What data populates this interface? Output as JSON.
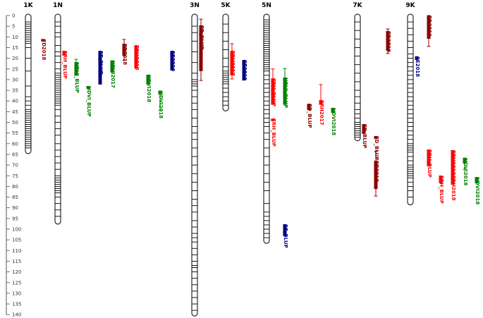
{
  "axis": {
    "ticks": [
      0,
      5,
      10,
      15,
      20,
      25,
      30,
      35,
      40,
      45,
      50,
      55,
      60,
      65,
      70,
      75,
      80,
      85,
      90,
      95,
      100,
      105,
      110,
      115,
      120,
      125,
      130,
      135,
      140
    ]
  },
  "chromosomes": [
    {
      "name": "1K",
      "length": 64,
      "markers": [
        3,
        4,
        5,
        6,
        7,
        8,
        9,
        10,
        11,
        12,
        13,
        15,
        20,
        26,
        33,
        38,
        40,
        42,
        44,
        45,
        46,
        47,
        48,
        49,
        50,
        51,
        52,
        53,
        54,
        55,
        56,
        57,
        58,
        59,
        60,
        61,
        62
      ],
      "qtls": [
        {
          "label": "FD2018",
          "color": "#8b0000",
          "start": 11,
          "end": 12.2
        }
      ]
    },
    {
      "name": "1N",
      "length": 97,
      "markers": [
        3,
        5,
        8,
        10,
        14,
        17,
        19,
        22,
        25,
        27,
        28,
        29,
        30,
        31,
        32,
        33,
        34,
        35,
        36,
        37,
        38,
        39,
        40,
        41,
        42,
        44,
        47,
        50,
        53,
        56,
        60,
        63,
        66,
        69,
        72,
        75,
        76,
        77,
        78,
        79,
        80,
        81,
        82,
        83,
        85,
        88,
        91,
        94
      ],
      "qtls": [
        {
          "label": "FRH_BLUP",
          "color": "#ff0000",
          "start": 16.5,
          "end": 18.8
        },
        {
          "label": "NDVI_BLUP",
          "color": "#008000",
          "start": 21.8,
          "end": 28,
          "whisker": [
            20.5,
            28
          ]
        },
        {
          "label": "NDVI_BLUP",
          "color": "#008000",
          "start": 33,
          "end": 34.3
        },
        {
          "label": "SE_BLUP",
          "color": "#000080",
          "start": 16.5,
          "end": 32.3
        },
        {
          "label": "NDVI2017",
          "color": "#008000",
          "start": 21,
          "end": 26.7
        },
        {
          "label": "FD2018",
          "color": "#8b0000",
          "start": 13.2,
          "end": 19,
          "whisker": [
            11.2,
            21
          ]
        },
        {
          "label": "FRH2018",
          "color": "#ff0000",
          "start": 13.9,
          "end": 24.8
        },
        {
          "label": "NDVI2018",
          "color": "#008000",
          "start": 27.7,
          "end": 32.3
        },
        {
          "label": "NDVI2018",
          "color": "#008000",
          "start": 35.3,
          "end": 37,
          "whisker": [
            35.3,
            44.5
          ]
        },
        {
          "label": "SE2019",
          "color": "#000080",
          "start": 16.5,
          "end": 25.7
        }
      ]
    },
    {
      "name": "3N",
      "length": 140,
      "markers": [
        5,
        8,
        12,
        17,
        22,
        27,
        30,
        31,
        32,
        33,
        35,
        38,
        41,
        44,
        48,
        52,
        55,
        58,
        62,
        66,
        70,
        74,
        78,
        82,
        86,
        89,
        92,
        96,
        99,
        102,
        104,
        106,
        109,
        112,
        115,
        117,
        118,
        120,
        123,
        126,
        129,
        132,
        135,
        138
      ],
      "qtls": [
        {
          "label": "FD_BLUP",
          "color": "#8b0000",
          "start": 4.6,
          "end": 26,
          "whisker": [
            1.7,
            30.4
          ]
        }
      ]
    },
    {
      "name": "5K",
      "length": 44,
      "markers": [
        4,
        8,
        12,
        16,
        20,
        24,
        26,
        27,
        28,
        29,
        30,
        31,
        32,
        34,
        36,
        38,
        40,
        42
      ],
      "qtls": [
        {
          "label": "FRH2017",
          "color": "#ff0000",
          "start": 16.5,
          "end": 28,
          "whisker": [
            13.2,
            29.7
          ]
        },
        {
          "label": "SE2019",
          "color": "#000080",
          "start": 20.8,
          "end": 30.4
        }
      ]
    },
    {
      "name": "5N",
      "length": 106,
      "markers": [
        2,
        3,
        4,
        5,
        6,
        7,
        8,
        9,
        10,
        11,
        12,
        13,
        14,
        15,
        16,
        17,
        18,
        19,
        20,
        21,
        22,
        23,
        24,
        25,
        26,
        28,
        30,
        32,
        34,
        36,
        38,
        40,
        42,
        44,
        46,
        48,
        50,
        52,
        55,
        58,
        62,
        66,
        70,
        74,
        78,
        82,
        88,
        92,
        94,
        96,
        98,
        100,
        102,
        104
      ],
      "qtls": [
        {
          "label": "FRH_BLUP",
          "color": "#ff0000",
          "start": 29.4,
          "end": 41.6,
          "whisker": [
            25,
            41.6
          ]
        },
        {
          "label": "NDVI_BLUP",
          "color": "#008000",
          "start": 29,
          "end": 41.6,
          "whisker": [
            24.8,
            41.6
          ]
        },
        {
          "label": "FD_BLUP",
          "color": "#8b0000",
          "start": 41.3,
          "end": 44.2
        },
        {
          "label": "FRH2017",
          "color": "#ff0000",
          "start": 39.6,
          "end": 41.6,
          "whisker": [
            32.3,
            41.6
          ]
        },
        {
          "label": "NDVI2018",
          "color": "#008000",
          "start": 43.2,
          "end": 45.5
        },
        {
          "label": "FRH_BLUP",
          "color": "#ff0000",
          "start": 48.2,
          "end": 49.5
        },
        {
          "label": "SE_BLUP",
          "color": "#000080",
          "start": 97.7,
          "end": 103.3
        }
      ]
    },
    {
      "name": "7K",
      "length": 58,
      "markers": [
        3,
        7,
        11,
        15,
        19,
        23,
        27,
        31,
        35,
        38,
        41,
        44,
        46,
        48,
        50,
        51,
        52,
        53,
        54,
        55,
        56,
        57
      ],
      "qtls": [
        {
          "label": "FD_BLUP",
          "color": "#8b0000",
          "start": 50.8,
          "end": 55.4
        },
        {
          "label": "FD_BLUP",
          "color": "#8b0000",
          "start": 56.4,
          "end": 57.8
        },
        {
          "label": "FD2019",
          "color": "#8b0000",
          "start": 7.3,
          "end": 16.5,
          "whisker": [
            6.3,
            17.8
          ]
        },
        {
          "label": "FD2018",
          "color": "#8b0000",
          "start": 68,
          "end": 81.2,
          "whisker": [
            63.7,
            84.5
          ]
        }
      ]
    },
    {
      "name": "9K",
      "length": 88,
      "markers": [
        3,
        6,
        9,
        12,
        15,
        18,
        20,
        22,
        24,
        26,
        28,
        30,
        32,
        34,
        36,
        38,
        40,
        42,
        44,
        46,
        48,
        50,
        52,
        54,
        56,
        58,
        60,
        61,
        62,
        63,
        64,
        66,
        68,
        70,
        71,
        72,
        73,
        74,
        75,
        76,
        78,
        80,
        82,
        85
      ],
      "qtls": [
        {
          "label": "FD2019",
          "color": "#8b0000",
          "start": 0,
          "end": 10.9,
          "whisker": [
            0,
            14.5
          ]
        },
        {
          "label": "SE2018",
          "color": "#000080",
          "start": 19.1,
          "end": 20.8
        },
        {
          "label": "FRH_BLUP",
          "color": "#ff0000",
          "start": 62.7,
          "end": 70.6
        },
        {
          "label": "FRH2018",
          "color": "#ff0000",
          "start": 63,
          "end": 79.2
        },
        {
          "label": "FRH_BLUP",
          "color": "#ff0000",
          "start": 74.9,
          "end": 78.5
        },
        {
          "label": "FRH2018",
          "color": "#ff0000",
          "start": 74.9,
          "end": 76.6
        },
        {
          "label": "NDVI2018",
          "color": "#008000",
          "start": 66.7,
          "end": 69.3,
          "whisker": [
            66.7,
            72
          ]
        },
        {
          "label": "NDVI2018",
          "color": "#008000",
          "start": 75.6,
          "end": 78.5
        }
      ]
    }
  ]
}
